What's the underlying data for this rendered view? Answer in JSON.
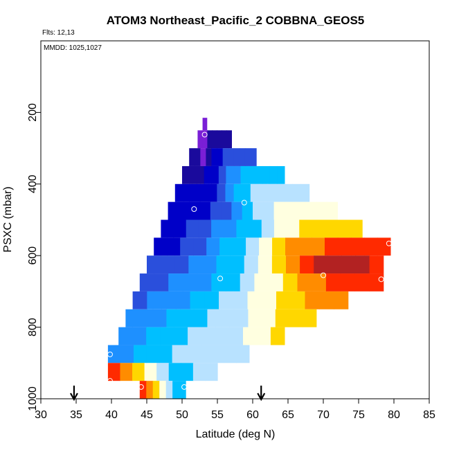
{
  "chart_data": {
    "type": "heatmap",
    "title": "ATOM3 Northeast_Pacific_2 COBBNA_GEOS5",
    "flights_label": "Flts: 12,13",
    "dates_label": "MMDD: 1025,1027",
    "xlabel": "Latitude (deg N)",
    "ylabel": "PSXC (mbar)",
    "xlim": [
      30,
      85
    ],
    "ylim": [
      1000,
      0
    ],
    "x_ticks": [
      30,
      35,
      40,
      45,
      50,
      55,
      60,
      65,
      70,
      75,
      80,
      85
    ],
    "y_ticks": [
      200,
      400,
      600,
      800,
      1000
    ],
    "grid": false,
    "color_scale": [
      "#7a1fd6",
      "#1a0a9c",
      "#0000c8",
      "#2a4fdc",
      "#1e90ff",
      "#00bfff",
      "#b8e2ff",
      "#ffffe0",
      "#ffd700",
      "#ff8c00",
      "#ff2a00",
      "#b22222"
    ],
    "rows": [
      {
        "p0": 215,
        "p1": 250,
        "lat0": 52.9,
        "lat1": 53.5,
        "values": [
          0
        ]
      },
      {
        "p0": 250,
        "p1": 300,
        "lat0": 52.2,
        "lat1": 57.0,
        "values": [
          0,
          0,
          1,
          1,
          1,
          1,
          1
        ]
      },
      {
        "p0": 300,
        "p1": 350,
        "lat0": 51.0,
        "lat1": 60.5,
        "values": [
          1,
          1,
          0,
          1,
          2,
          2,
          3,
          3,
          3,
          3,
          3,
          3
        ]
      },
      {
        "p0": 350,
        "p1": 400,
        "lat0": 50.0,
        "lat1": 64.5,
        "values": [
          1,
          1,
          1,
          2,
          2,
          3,
          4,
          4,
          5,
          5,
          5,
          5,
          5,
          5
        ]
      },
      {
        "p0": 400,
        "p1": 450,
        "lat0": 49.0,
        "lat1": 68.0,
        "values": [
          2,
          2,
          2,
          2,
          2,
          3,
          4,
          5,
          5,
          6,
          6,
          6,
          6,
          6,
          6,
          6
        ]
      },
      {
        "p0": 450,
        "p1": 500,
        "lat0": 48.0,
        "lat1": 72.0,
        "values": [
          2,
          2,
          2,
          2,
          3,
          3,
          4,
          5,
          6,
          6,
          7,
          7,
          7,
          7,
          7,
          7
        ]
      },
      {
        "p0": 500,
        "p1": 550,
        "lat0": 47.0,
        "lat1": 75.5,
        "values": [
          2,
          2,
          3,
          3,
          4,
          4,
          5,
          5,
          6,
          7,
          7,
          8,
          8,
          8,
          8,
          8
        ]
      },
      {
        "p0": 550,
        "p1": 600,
        "lat0": 46.0,
        "lat1": 79.5,
        "values": [
          2,
          2,
          3,
          3,
          4,
          5,
          5,
          6,
          7,
          8,
          9,
          9,
          9,
          10,
          10,
          10,
          10,
          10
        ]
      },
      {
        "p0": 600,
        "p1": 650,
        "lat0": 45.0,
        "lat1": 78.5,
        "values": [
          3,
          3,
          3,
          4,
          4,
          5,
          5,
          6,
          7,
          8,
          9,
          10,
          11,
          11,
          11,
          11,
          10
        ]
      },
      {
        "p0": 650,
        "p1": 700,
        "lat0": 44.0,
        "lat1": 78.5,
        "values": [
          3,
          3,
          4,
          4,
          4,
          5,
          5,
          6,
          7,
          7,
          8,
          9,
          9,
          10,
          10,
          10,
          10
        ]
      },
      {
        "p0": 700,
        "p1": 750,
        "lat0": 43.0,
        "lat1": 73.5,
        "values": [
          3,
          4,
          4,
          4,
          5,
          5,
          6,
          6,
          7,
          7,
          8,
          8,
          9,
          9,
          9
        ]
      },
      {
        "p0": 750,
        "p1": 800,
        "lat0": 42.0,
        "lat1": 69.0,
        "values": [
          4,
          4,
          4,
          5,
          5,
          5,
          6,
          6,
          6,
          7,
          7,
          8,
          8,
          8
        ]
      },
      {
        "p0": 800,
        "p1": 850,
        "lat0": 41.0,
        "lat1": 64.5,
        "values": [
          4,
          4,
          5,
          5,
          5,
          6,
          6,
          6,
          6,
          7,
          7,
          8
        ]
      },
      {
        "p0": 850,
        "p1": 900,
        "lat0": 39.5,
        "lat1": 59.5,
        "values": [
          4,
          4,
          5,
          5,
          5,
          6,
          6,
          6,
          6,
          6,
          6
        ]
      },
      {
        "p0": 900,
        "p1": 950,
        "lat0": 39.5,
        "lat1": 55.0,
        "values": [
          10,
          9,
          8,
          7,
          6,
          5,
          5,
          6,
          6
        ]
      },
      {
        "p0": 950,
        "p1": 1000,
        "lat0": 44.0,
        "lat1": 50.5,
        "values": [
          10,
          9,
          8,
          7,
          6,
          5,
          5
        ]
      }
    ],
    "markers": [
      [
        53.2,
        262
      ],
      [
        51.7,
        470
      ],
      [
        58.8,
        452
      ],
      [
        55.4,
        664
      ],
      [
        70.0,
        655
      ],
      [
        79.3,
        566
      ],
      [
        78.2,
        666
      ],
      [
        39.8,
        876
      ],
      [
        39.8,
        950
      ],
      [
        44.2,
        967
      ],
      [
        50.3,
        967
      ]
    ],
    "arrows": [
      34.7,
      61.2
    ]
  }
}
